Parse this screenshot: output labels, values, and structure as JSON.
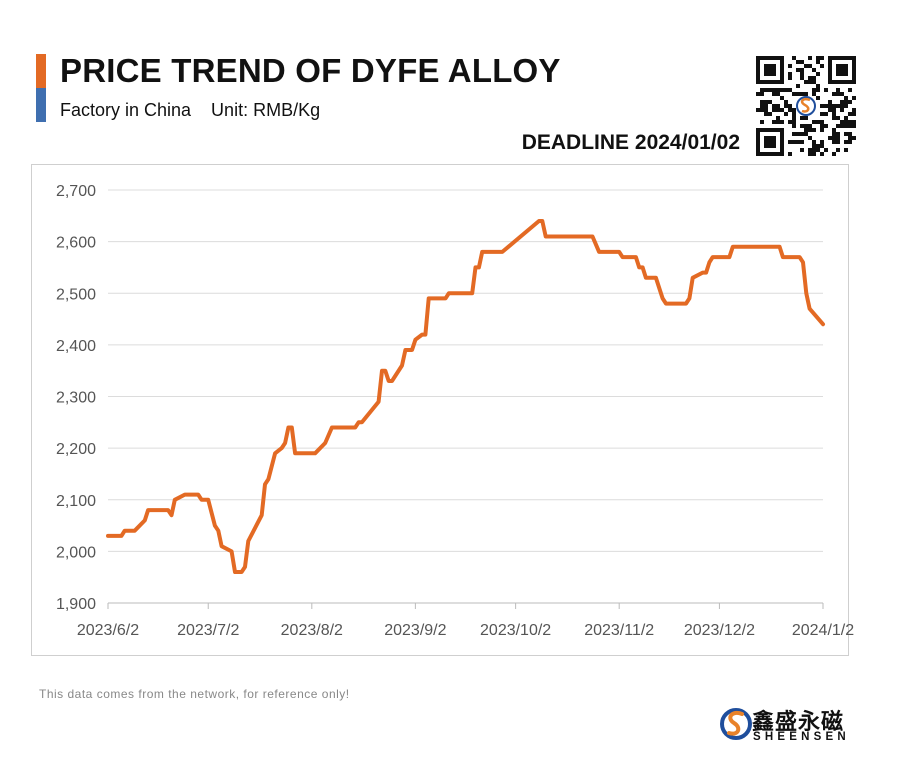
{
  "header": {
    "title": "PRICE TREND OF DYFE ALLOY",
    "subtitle": "Factory in China    Unit: RMB/Kg",
    "deadline": "DEADLINE 2024/01/02"
  },
  "footer": {
    "note": "This data comes from the network, for reference only!",
    "brand_cn": "鑫盛永磁",
    "brand_en": "SHEENSEN"
  },
  "colors": {
    "line": "#e36a24",
    "grid": "#dcdcdc",
    "axis_text": "#555555",
    "brand_orange": "#e8822a",
    "brand_blue": "#1f4e9c"
  },
  "icons": {
    "qr": "qr-code-icon",
    "logo": "sheensen-logo-icon"
  },
  "chart_data": {
    "type": "line",
    "title": "PRICE TREND OF DYFE ALLOY",
    "ylabel": "",
    "xlabel": "",
    "ylim": [
      1900,
      2700
    ],
    "yticks": [
      1900,
      2000,
      2100,
      2200,
      2300,
      2400,
      2500,
      2600,
      2700
    ],
    "ytick_labels": [
      "1,900",
      "2,000",
      "2,100",
      "2,200",
      "2,300",
      "2,400",
      "2,500",
      "2,600",
      "2,700"
    ],
    "xlim": [
      "2023-06-02",
      "2024-01-02"
    ],
    "xticks": [
      "2023-06-02",
      "2023-07-02",
      "2023-08-02",
      "2023-09-02",
      "2023-10-02",
      "2023-11-02",
      "2023-12-02",
      "2024-01-02"
    ],
    "xtick_labels": [
      "2023/6/2",
      "2023/7/2",
      "2023/8/2",
      "2023/9/2",
      "2023/10/2",
      "2023/11/2",
      "2023/12/2",
      "2024/1/2"
    ],
    "grid": "horizontal",
    "legend": "none",
    "series": [
      {
        "points": [
          [
            "2023-06-02",
            2030
          ],
          [
            "2023-06-06",
            2030
          ],
          [
            "2023-06-07",
            2040
          ],
          [
            "2023-06-10",
            2040
          ],
          [
            "2023-06-13",
            2060
          ],
          [
            "2023-06-14",
            2080
          ],
          [
            "2023-06-20",
            2080
          ],
          [
            "2023-06-21",
            2070
          ],
          [
            "2023-06-22",
            2100
          ],
          [
            "2023-06-25",
            2110
          ],
          [
            "2023-06-29",
            2110
          ],
          [
            "2023-06-30",
            2100
          ],
          [
            "2023-07-02",
            2100
          ],
          [
            "2023-07-04",
            2050
          ],
          [
            "2023-07-05",
            2040
          ],
          [
            "2023-07-06",
            2010
          ],
          [
            "2023-07-09",
            2000
          ],
          [
            "2023-07-10",
            1960
          ],
          [
            "2023-07-12",
            1960
          ],
          [
            "2023-07-13",
            1970
          ],
          [
            "2023-07-14",
            2020
          ],
          [
            "2023-07-18",
            2070
          ],
          [
            "2023-07-19",
            2130
          ],
          [
            "2023-07-20",
            2140
          ],
          [
            "2023-07-22",
            2190
          ],
          [
            "2023-07-24",
            2200
          ],
          [
            "2023-07-25",
            2210
          ],
          [
            "2023-07-26",
            2240
          ],
          [
            "2023-07-27",
            2240
          ],
          [
            "2023-07-28",
            2190
          ],
          [
            "2023-08-03",
            2190
          ],
          [
            "2023-08-06",
            2210
          ],
          [
            "2023-08-08",
            2240
          ],
          [
            "2023-08-15",
            2240
          ],
          [
            "2023-08-16",
            2250
          ],
          [
            "2023-08-17",
            2250
          ],
          [
            "2023-08-22",
            2290
          ],
          [
            "2023-08-23",
            2350
          ],
          [
            "2023-08-24",
            2350
          ],
          [
            "2023-08-25",
            2330
          ],
          [
            "2023-08-26",
            2330
          ],
          [
            "2023-08-29",
            2360
          ],
          [
            "2023-08-30",
            2390
          ],
          [
            "2023-09-01",
            2390
          ],
          [
            "2023-09-02",
            2410
          ],
          [
            "2023-09-04",
            2420
          ],
          [
            "2023-09-05",
            2420
          ],
          [
            "2023-09-06",
            2490
          ],
          [
            "2023-09-11",
            2490
          ],
          [
            "2023-09-12",
            2500
          ],
          [
            "2023-09-19",
            2500
          ],
          [
            "2023-09-20",
            2550
          ],
          [
            "2023-09-21",
            2550
          ],
          [
            "2023-09-22",
            2580
          ],
          [
            "2023-09-28",
            2580
          ],
          [
            "2023-10-09",
            2640
          ],
          [
            "2023-10-10",
            2640
          ],
          [
            "2023-10-11",
            2610
          ],
          [
            "2023-10-25",
            2610
          ],
          [
            "2023-10-27",
            2580
          ],
          [
            "2023-11-02",
            2580
          ],
          [
            "2023-11-03",
            2570
          ],
          [
            "2023-11-07",
            2570
          ],
          [
            "2023-11-08",
            2550
          ],
          [
            "2023-11-09",
            2550
          ],
          [
            "2023-11-10",
            2530
          ],
          [
            "2023-11-13",
            2530
          ],
          [
            "2023-11-15",
            2490
          ],
          [
            "2023-11-16",
            2480
          ],
          [
            "2023-11-22",
            2480
          ],
          [
            "2023-11-23",
            2490
          ],
          [
            "2023-11-24",
            2530
          ],
          [
            "2023-11-27",
            2540
          ],
          [
            "2023-11-28",
            2540
          ],
          [
            "2023-11-29",
            2560
          ],
          [
            "2023-11-30",
            2570
          ],
          [
            "2023-12-05",
            2570
          ],
          [
            "2023-12-06",
            2590
          ],
          [
            "2023-12-20",
            2590
          ],
          [
            "2023-12-21",
            2570
          ],
          [
            "2023-12-26",
            2570
          ],
          [
            "2023-12-27",
            2560
          ],
          [
            "2023-12-28",
            2500
          ],
          [
            "2023-12-29",
            2470
          ],
          [
            "2024-01-02",
            2440
          ]
        ]
      }
    ]
  }
}
